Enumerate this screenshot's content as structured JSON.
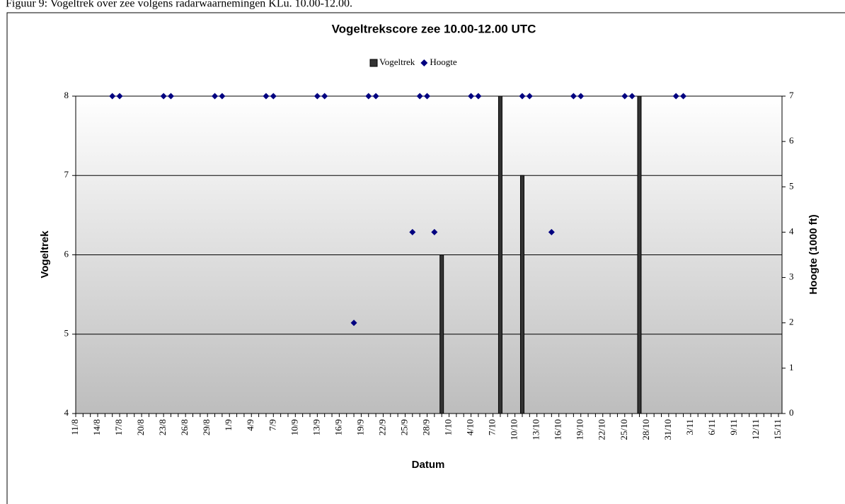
{
  "caption": "Figuur 9: Vogeltrek over zee volgens radarwaarnemingen KLu. 10.00-12.00.",
  "chart_data": {
    "type": "bar",
    "title": "Vogeltrekscore zee 10.00-12.00 UTC",
    "x_label": "Datum",
    "y_label": "Vogeltrek",
    "y2_label": "Hoogte (1000 ft)",
    "categories": [
      "11/8",
      null,
      null,
      "14/8",
      null,
      null,
      "17/8",
      null,
      null,
      "20/8",
      null,
      null,
      "23/8",
      null,
      null,
      "26/8",
      null,
      null,
      "29/8",
      null,
      null,
      "1/9",
      null,
      null,
      "4/9",
      null,
      null,
      "7/9",
      null,
      null,
      "10/9",
      null,
      null,
      "13/9",
      null,
      null,
      "16/9",
      null,
      null,
      "19/9",
      null,
      null,
      "22/9",
      null,
      null,
      "25/9",
      null,
      null,
      "28/9",
      null,
      null,
      "1/10",
      null,
      null,
      "4/10",
      null,
      null,
      "7/10",
      null,
      null,
      "10/10",
      null,
      null,
      "13/10",
      null,
      null,
      "16/10",
      null,
      null,
      "19/10",
      null,
      null,
      "22/10",
      null,
      null,
      "25/10",
      null,
      null,
      "28/10",
      null,
      null,
      "31/10",
      null,
      null,
      "3/11",
      null,
      null,
      "6/11",
      null,
      null,
      "9/11",
      null,
      null,
      "12/11",
      null,
      null,
      "15/11"
    ],
    "series": [
      {
        "name": "Vogeltrek",
        "type": "bar",
        "color": "#333333",
        "axis": "y",
        "values": [
          null,
          null,
          null,
          null,
          null,
          null,
          null,
          null,
          null,
          null,
          null,
          null,
          null,
          null,
          null,
          null,
          null,
          null,
          null,
          null,
          null,
          null,
          null,
          null,
          null,
          null,
          null,
          null,
          null,
          null,
          null,
          null,
          null,
          null,
          null,
          null,
          null,
          null,
          null,
          null,
          null,
          null,
          null,
          null,
          null,
          null,
          null,
          null,
          null,
          null,
          6,
          null,
          null,
          null,
          null,
          null,
          null,
          null,
          8,
          null,
          null,
          7,
          null,
          null,
          null,
          null,
          null,
          null,
          null,
          null,
          null,
          null,
          null,
          null,
          null,
          null,
          null,
          8,
          null,
          null,
          null,
          null,
          null,
          null,
          null,
          null,
          null,
          null,
          null,
          null,
          null,
          null,
          null,
          null,
          null,
          null,
          null
        ]
      },
      {
        "name": "Hoogte",
        "type": "scatter",
        "color": "#000080",
        "axis": "y2",
        "values": [
          null,
          null,
          null,
          null,
          null,
          7,
          7,
          null,
          null,
          null,
          null,
          null,
          7,
          7,
          null,
          null,
          null,
          null,
          null,
          7,
          7,
          null,
          null,
          null,
          null,
          null,
          7,
          7,
          null,
          null,
          null,
          null,
          null,
          7,
          7,
          null,
          null,
          null,
          2,
          null,
          7,
          7,
          null,
          null,
          null,
          null,
          4,
          7,
          7,
          4,
          null,
          null,
          null,
          null,
          7,
          7,
          null,
          null,
          null,
          null,
          null,
          7,
          7,
          null,
          null,
          4,
          null,
          null,
          7,
          7,
          null,
          null,
          null,
          null,
          null,
          7,
          7,
          null,
          null,
          null,
          null,
          null,
          7,
          7,
          null,
          null,
          null,
          null,
          null,
          null,
          null,
          null,
          null,
          null,
          null,
          null,
          null
        ]
      }
    ],
    "ylim": [
      4,
      8
    ],
    "yticks": [
      4,
      5,
      6,
      7,
      8
    ],
    "y2lim": [
      0,
      7
    ],
    "y2ticks": [
      0,
      1,
      2,
      3,
      4,
      5,
      6,
      7
    ],
    "grid": true,
    "legend": "top"
  }
}
